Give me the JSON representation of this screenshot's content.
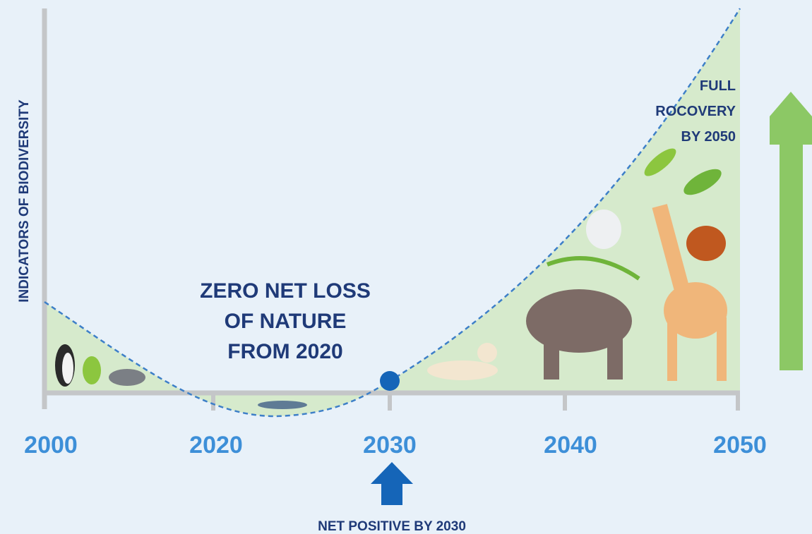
{
  "y_axis_label": "INDICATORS OF BIODIVERSITY",
  "x_labels": [
    "2000",
    "2020",
    "2030",
    "2040",
    "2050"
  ],
  "annotations": {
    "zero_net_loss": [
      "ZERO NET LOSS",
      "OF NATURE",
      "FROM 2020"
    ],
    "full_recovery": [
      "FULL",
      "ROCOVERY",
      "BY 2050"
    ],
    "net_positive": "NET POSITIVE BY 2030"
  }
}
